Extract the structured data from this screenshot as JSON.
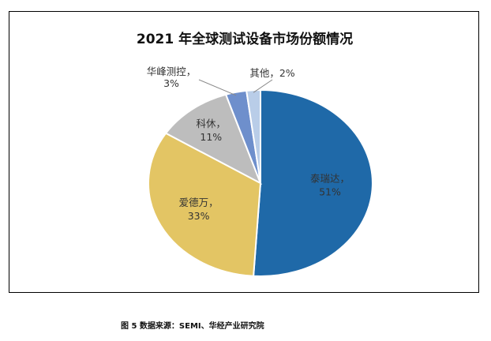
{
  "chart_data": {
    "type": "pie",
    "title": "2021 年全球测试设备市场份额情况",
    "slices": [
      {
        "label": "泰瑞达",
        "pct_text": "51%",
        "value": 51,
        "color": "#1f69a8"
      },
      {
        "label": "爱德万",
        "pct_text": "33%",
        "value": 33,
        "color": "#e3c564"
      },
      {
        "label": "科休",
        "pct_text": "11%",
        "value": 11,
        "color": "#bdbdbd"
      },
      {
        "label": "华峰测控",
        "pct_text": "3%",
        "value": 3,
        "color": "#6e8fcc"
      },
      {
        "label": "其他",
        "pct_text": "2%",
        "value": 2,
        "color": "#b9cde8"
      }
    ]
  },
  "caption": "图 5  数据来源：SEMI、华经产业研究院"
}
